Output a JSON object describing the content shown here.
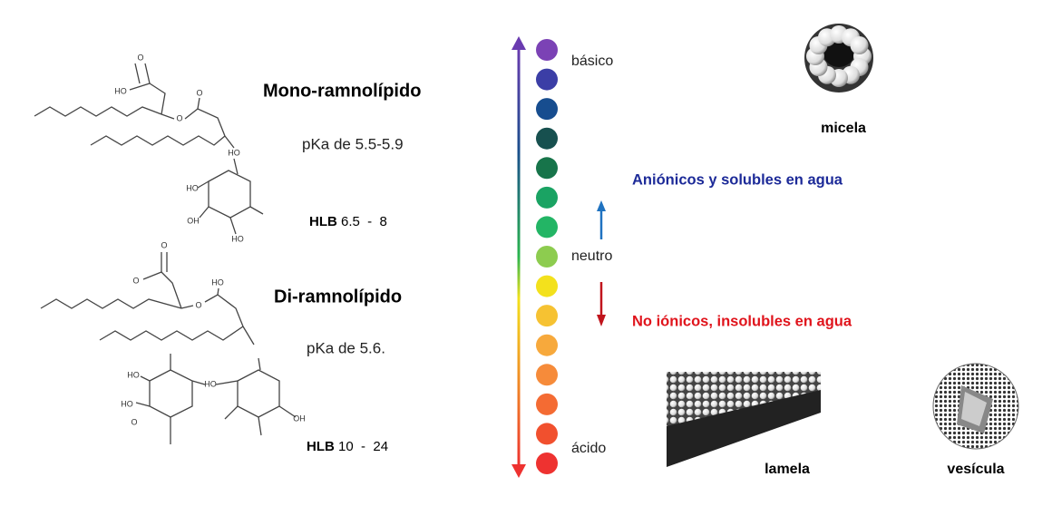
{
  "molecules": [
    {
      "name": "Mono-ramnolípido",
      "pka": "pKa de 5.5-5.9",
      "hlb_label": "HLB",
      "hlb_value": "6.5  -  8"
    },
    {
      "name": "Di-ramnolípido",
      "pka": "pKa de 5.6.",
      "hlb_label": "HLB",
      "hlb_value": "10  -  24"
    }
  ],
  "atom_labels": [
    "HO",
    "O",
    "O",
    "O",
    "HO",
    "HO",
    "OH",
    "HO",
    "O",
    "O",
    "O",
    "HO",
    "HO",
    "HO",
    "O",
    "HO",
    "OH"
  ],
  "ph_scale": {
    "labels": {
      "top": "básico",
      "middle": "neutro",
      "bottom": "ácido"
    },
    "colors": [
      "#7b42b5",
      "#3b3ea6",
      "#174d8f",
      "#17504f",
      "#17744a",
      "#1aa363",
      "#23b565",
      "#8dcc4f",
      "#f3e11c",
      "#f6c232",
      "#f7a93c",
      "#f68b3a",
      "#f46b33",
      "#f1502e",
      "#ee3230"
    ]
  },
  "annotations": {
    "up": "Aniónicos y solubles en agua",
    "down": "No iónicos, insolubles en agua"
  },
  "structures": {
    "micelle": "micela",
    "lamella": "lamela",
    "vesicle": "vesícula"
  }
}
